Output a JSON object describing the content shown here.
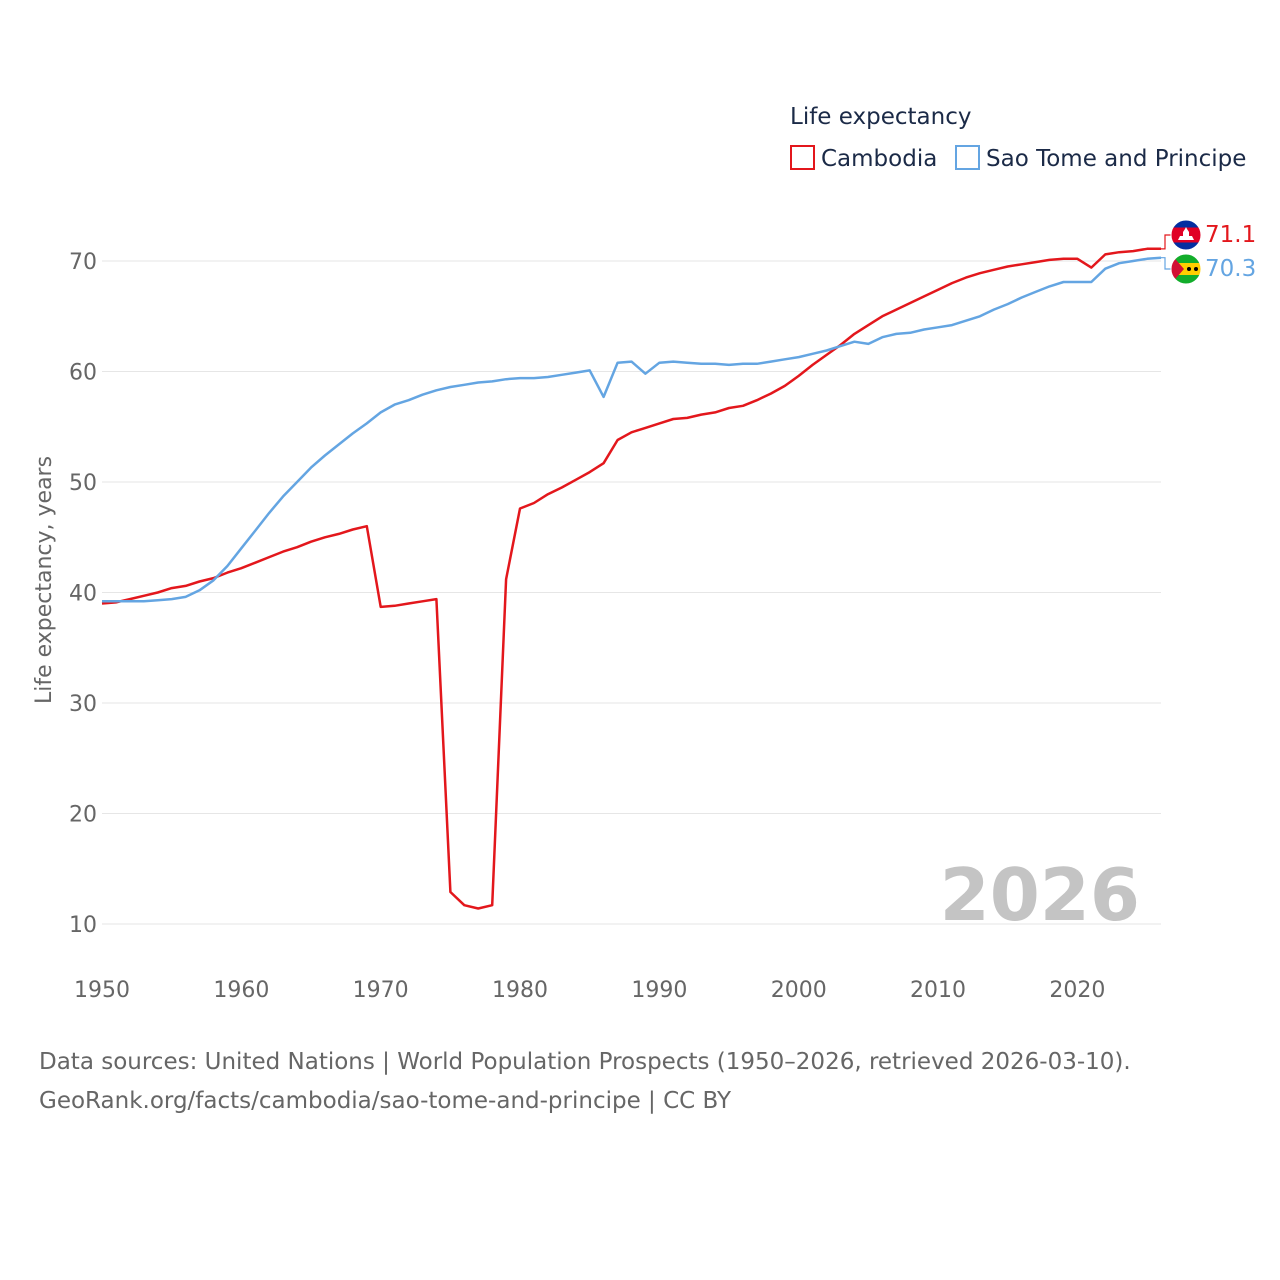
{
  "chart_data": {
    "type": "line",
    "title": "Life expectancy",
    "ylabel": "Life expectancy, years",
    "xlabel": "",
    "xlim": [
      1950,
      2026
    ],
    "ylim": [
      5,
      75
    ],
    "x_ticks": [
      "1950",
      "1960",
      "1970",
      "1980",
      "1990",
      "2000",
      "2010",
      "2020"
    ],
    "y_ticks": [
      "10",
      "20",
      "30",
      "40",
      "50",
      "60",
      "70"
    ],
    "grid": true,
    "legend_position": "top-right",
    "year_label": "2026",
    "series": [
      {
        "name": "Cambodia",
        "color": "#e3171c",
        "end_label": "71.1",
        "x": [
          1950,
          1951,
          1952,
          1953,
          1954,
          1955,
          1956,
          1957,
          1958,
          1959,
          1960,
          1961,
          1962,
          1963,
          1964,
          1965,
          1966,
          1967,
          1968,
          1969,
          1970,
          1971,
          1972,
          1973,
          1974,
          1975,
          1976,
          1977,
          1978,
          1979,
          1980,
          1981,
          1982,
          1983,
          1984,
          1985,
          1986,
          1987,
          1988,
          1989,
          1990,
          1991,
          1992,
          1993,
          1994,
          1995,
          1996,
          1997,
          1998,
          1999,
          2000,
          2001,
          2002,
          2003,
          2004,
          2005,
          2006,
          2007,
          2008,
          2009,
          2010,
          2011,
          2012,
          2013,
          2014,
          2015,
          2016,
          2017,
          2018,
          2019,
          2020,
          2021,
          2022,
          2023,
          2024,
          2025,
          2026
        ],
        "values": [
          39.0,
          39.1,
          39.4,
          39.7,
          40.0,
          40.4,
          40.6,
          41.0,
          41.3,
          41.8,
          42.2,
          42.7,
          43.2,
          43.7,
          44.1,
          44.6,
          45.0,
          45.3,
          45.7,
          46.0,
          38.7,
          38.8,
          39.0,
          39.2,
          39.4,
          12.9,
          11.7,
          11.4,
          11.7,
          41.2,
          47.6,
          48.1,
          48.9,
          49.5,
          50.2,
          50.9,
          51.7,
          53.8,
          54.5,
          54.9,
          55.3,
          55.7,
          55.8,
          56.1,
          56.3,
          56.7,
          56.9,
          57.4,
          58.0,
          58.7,
          59.6,
          60.6,
          61.5,
          62.4,
          63.4,
          64.2,
          65.0,
          65.6,
          66.2,
          66.8,
          67.4,
          68.0,
          68.5,
          68.9,
          69.2,
          69.5,
          69.7,
          69.9,
          70.1,
          70.2,
          70.2,
          69.4,
          70.6,
          70.8,
          70.9,
          71.1,
          71.1
        ]
      },
      {
        "name": "Sao Tome and Principe",
        "color": "#64a5e2",
        "end_label": "70.3",
        "x": [
          1950,
          1951,
          1952,
          1953,
          1954,
          1955,
          1956,
          1957,
          1958,
          1959,
          1960,
          1961,
          1962,
          1963,
          1964,
          1965,
          1966,
          1967,
          1968,
          1969,
          1970,
          1971,
          1972,
          1973,
          1974,
          1975,
          1976,
          1977,
          1978,
          1979,
          1980,
          1981,
          1982,
          1983,
          1984,
          1985,
          1986,
          1987,
          1988,
          1989,
          1990,
          1991,
          1992,
          1993,
          1994,
          1995,
          1996,
          1997,
          1998,
          1999,
          2000,
          2001,
          2002,
          2003,
          2004,
          2005,
          2006,
          2007,
          2008,
          2009,
          2010,
          2011,
          2012,
          2013,
          2014,
          2015,
          2016,
          2017,
          2018,
          2019,
          2020,
          2021,
          2022,
          2023,
          2024,
          2025,
          2026
        ],
        "values": [
          39.2,
          39.2,
          39.2,
          39.2,
          39.3,
          39.4,
          39.6,
          40.2,
          41.1,
          42.4,
          44.0,
          45.6,
          47.2,
          48.7,
          50.0,
          51.3,
          52.4,
          53.4,
          54.4,
          55.3,
          56.3,
          57.0,
          57.4,
          57.9,
          58.3,
          58.6,
          58.8,
          59.0,
          59.1,
          59.3,
          59.4,
          59.4,
          59.5,
          59.7,
          59.9,
          60.1,
          57.7,
          60.8,
          60.9,
          59.8,
          60.8,
          60.9,
          60.8,
          60.7,
          60.7,
          60.6,
          60.7,
          60.7,
          60.9,
          61.1,
          61.3,
          61.6,
          61.9,
          62.3,
          62.7,
          62.5,
          63.1,
          63.4,
          63.5,
          63.8,
          64.0,
          64.2,
          64.6,
          65.0,
          65.6,
          66.1,
          66.7,
          67.2,
          67.7,
          68.1,
          68.1,
          68.1,
          69.3,
          69.8,
          70.0,
          70.2,
          70.3
        ]
      }
    ]
  },
  "source_line_1": "Data sources: United Nations | World Population Prospects (1950–2026, retrieved 2026-03-10).",
  "source_line_2": "GeoRank.org/facts/cambodia/sao-tome-and-principe | CC BY",
  "flags": {
    "cambodia": "cambodia-flag-icon",
    "sao_tome": "sao-tome-flag-icon",
    "cambodia_colors": [
      "#032ea1",
      "#e00025",
      "#ffffff"
    ],
    "sao_tome_colors": [
      "#12ad2b",
      "#ffce00",
      "#d21034",
      "#000000"
    ]
  }
}
